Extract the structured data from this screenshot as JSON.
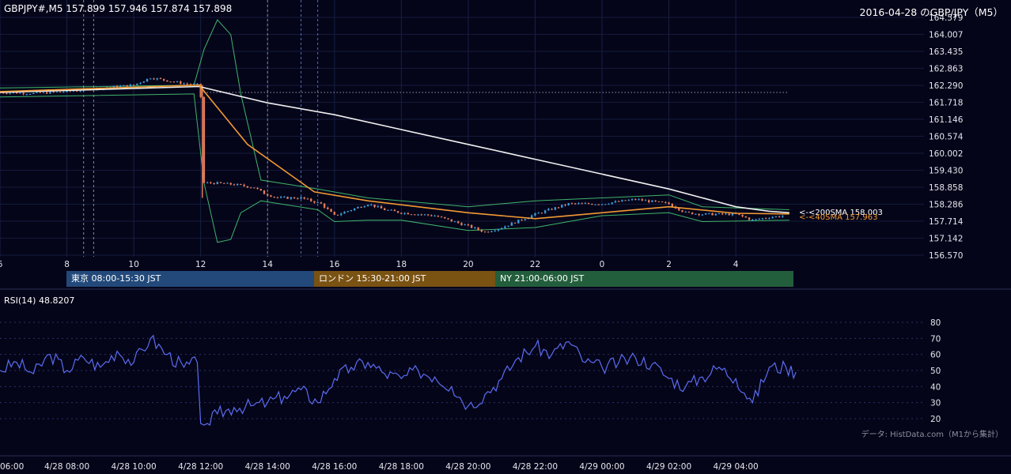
{
  "header": {
    "symbol_info": "GBPJPY#,M5 157.899 157.946 157.874 157.898",
    "chart_title": "2016-04-28 のGBP/JPY（M5）"
  },
  "sessions": [
    {
      "label": "東京 08:00-15:30 JST",
      "color": "#22497a"
    },
    {
      "label": "ロンドン 15:30-21:00 JST",
      "color": "#7a5212"
    },
    {
      "label": "NY 21:00-06:00 JST",
      "color": "#235e3c"
    }
  ],
  "ma_labels": {
    "sma200": "<-<200SMA 158.003",
    "sma40": "<-<40SMA 157.963"
  },
  "rsi_label": "RSI(14) 48.8207",
  "credit": "データ: HistData.com（M1から集計）",
  "chart_data": [
    {
      "type": "candlestick",
      "title": "2016-04-28 のGBP/JPY（M5）",
      "hours": [
        "6",
        "8",
        "10",
        "12",
        "14",
        "16",
        "18",
        "20",
        "22",
        "0",
        "2",
        "4"
      ],
      "price_ticks": [
        "156.570",
        "157.142",
        "157.714",
        "158.286",
        "158.858",
        "159.430",
        "160.002",
        "160.574",
        "161.146",
        "161.718",
        "162.290",
        "162.863",
        "163.435",
        "164.007",
        "164.579"
      ],
      "ylim": [
        156.57,
        164.579
      ],
      "x_range_hours": [
        6,
        29.7
      ],
      "reference_level": 162.05,
      "price_path": [
        [
          6,
          162.05
        ],
        [
          7,
          162.02
        ],
        [
          8,
          162.08
        ],
        [
          9,
          162.2
        ],
        [
          10,
          162.3
        ],
        [
          10.5,
          162.55
        ],
        [
          11,
          162.45
        ],
        [
          11.5,
          162.35
        ],
        [
          11.95,
          162.3
        ],
        [
          12.05,
          161.5
        ],
        [
          12.1,
          159.0
        ],
        [
          12.4,
          159.0
        ],
        [
          13,
          158.95
        ],
        [
          13.6,
          158.85
        ],
        [
          13.9,
          158.65
        ],
        [
          14.3,
          158.5
        ],
        [
          15,
          158.5
        ],
        [
          15.6,
          158.3
        ],
        [
          16,
          157.9
        ],
        [
          16.5,
          158.1
        ],
        [
          17,
          158.3
        ],
        [
          17.5,
          158.1
        ],
        [
          18,
          158.0
        ],
        [
          19,
          157.9
        ],
        [
          20,
          157.55
        ],
        [
          20.5,
          157.35
        ],
        [
          21,
          157.5
        ],
        [
          22,
          157.95
        ],
        [
          23,
          158.3
        ],
        [
          0,
          158.3
        ],
        [
          1,
          158.45
        ],
        [
          2,
          158.3
        ],
        [
          2.5,
          158.0
        ],
        [
          3,
          157.95
        ],
        [
          4,
          157.95
        ],
        [
          4.5,
          157.75
        ],
        [
          5,
          157.85
        ],
        [
          5.5,
          157.9
        ]
      ],
      "sma200_path": [
        [
          6,
          162.05
        ],
        [
          11.95,
          162.25
        ],
        [
          14,
          161.7
        ],
        [
          16,
          161.3
        ],
        [
          18,
          160.8
        ],
        [
          20,
          160.3
        ],
        [
          22,
          159.8
        ],
        [
          0,
          159.3
        ],
        [
          2,
          158.8
        ],
        [
          4,
          158.2
        ],
        [
          5,
          158.05
        ],
        [
          5.6,
          158.0
        ]
      ],
      "sma40_path": [
        [
          6,
          162.08
        ],
        [
          11.95,
          162.3
        ],
        [
          13.4,
          160.3
        ],
        [
          15.4,
          158.7
        ],
        [
          17,
          158.4
        ],
        [
          20,
          158.0
        ],
        [
          22,
          157.8
        ],
        [
          0,
          158.0
        ],
        [
          2,
          158.2
        ],
        [
          4,
          157.98
        ],
        [
          5.6,
          157.96
        ]
      ],
      "bb_upper": [
        [
          6,
          162.2
        ],
        [
          11.8,
          162.3
        ],
        [
          12.1,
          163.5
        ],
        [
          12.5,
          164.5
        ],
        [
          12.9,
          164.0
        ],
        [
          13.2,
          162.0
        ],
        [
          13.8,
          159.1
        ],
        [
          15.5,
          158.8
        ],
        [
          17,
          158.5
        ],
        [
          20,
          158.2
        ],
        [
          22,
          158.4
        ],
        [
          0,
          158.5
        ],
        [
          2,
          158.6
        ],
        [
          3,
          158.2
        ],
        [
          5.6,
          158.1
        ]
      ],
      "bb_lower": [
        [
          6,
          161.9
        ],
        [
          11.8,
          162.0
        ],
        [
          12.1,
          159.0
        ],
        [
          12.5,
          157.0
        ],
        [
          12.9,
          157.1
        ],
        [
          13.2,
          158.0
        ],
        [
          13.8,
          158.4
        ],
        [
          15.5,
          158.1
        ],
        [
          16,
          157.7
        ],
        [
          17,
          157.75
        ],
        [
          18,
          157.75
        ],
        [
          20,
          157.4
        ],
        [
          22,
          157.5
        ],
        [
          0,
          157.9
        ],
        [
          2,
          158.0
        ],
        [
          3,
          157.7
        ],
        [
          5.6,
          157.75
        ]
      ],
      "session_lines_hours": [
        8.5,
        8.8,
        14,
        15,
        15.5
      ]
    },
    {
      "type": "line",
      "title": "RSI(14) 48.8207",
      "ylim": [
        15,
        85
      ],
      "y_ticks": [
        20,
        30,
        40,
        50,
        60,
        70,
        80
      ],
      "time_labels": [
        "06:00",
        "4/28 08:00",
        "4/28 10:00",
        "4/28 12:00",
        "4/28 14:00",
        "4/28 16:00",
        "4/28 18:00",
        "4/28 20:00",
        "4/28 22:00",
        "4/29 00:00",
        "4/29 02:00",
        "4/29 04:00"
      ],
      "rsi_path": [
        [
          6,
          50
        ],
        [
          6.5,
          55
        ],
        [
          7,
          48
        ],
        [
          7.5,
          60
        ],
        [
          8,
          50
        ],
        [
          8.5,
          58
        ],
        [
          9,
          52
        ],
        [
          9.5,
          62
        ],
        [
          10,
          55
        ],
        [
          10.5,
          70
        ],
        [
          11,
          60
        ],
        [
          11.5,
          52
        ],
        [
          11.9,
          55
        ],
        [
          12,
          17
        ],
        [
          12.2,
          17
        ],
        [
          12.5,
          23
        ],
        [
          13,
          27
        ],
        [
          13.5,
          28
        ],
        [
          14,
          30
        ],
        [
          14.5,
          34
        ],
        [
          15,
          38
        ],
        [
          15.5,
          30
        ],
        [
          16,
          45
        ],
        [
          16.5,
          52
        ],
        [
          17,
          55
        ],
        [
          17.5,
          48
        ],
        [
          18,
          45
        ],
        [
          18.5,
          50
        ],
        [
          19,
          46
        ],
        [
          19.5,
          40
        ],
        [
          20,
          28
        ],
        [
          20.5,
          35
        ],
        [
          21,
          45
        ],
        [
          21.5,
          58
        ],
        [
          22,
          65
        ],
        [
          22.5,
          60
        ],
        [
          23,
          68
        ],
        [
          23.5,
          55
        ],
        [
          0,
          52
        ],
        [
          0.5,
          55
        ],
        [
          1,
          58
        ],
        [
          1.5,
          54
        ],
        [
          2,
          45
        ],
        [
          2.5,
          40
        ],
        [
          3,
          46
        ],
        [
          3.5,
          52
        ],
        [
          4,
          45
        ],
        [
          4.5,
          30
        ],
        [
          5,
          52
        ],
        [
          5.5,
          52
        ],
        [
          5.8,
          49
        ]
      ]
    }
  ]
}
